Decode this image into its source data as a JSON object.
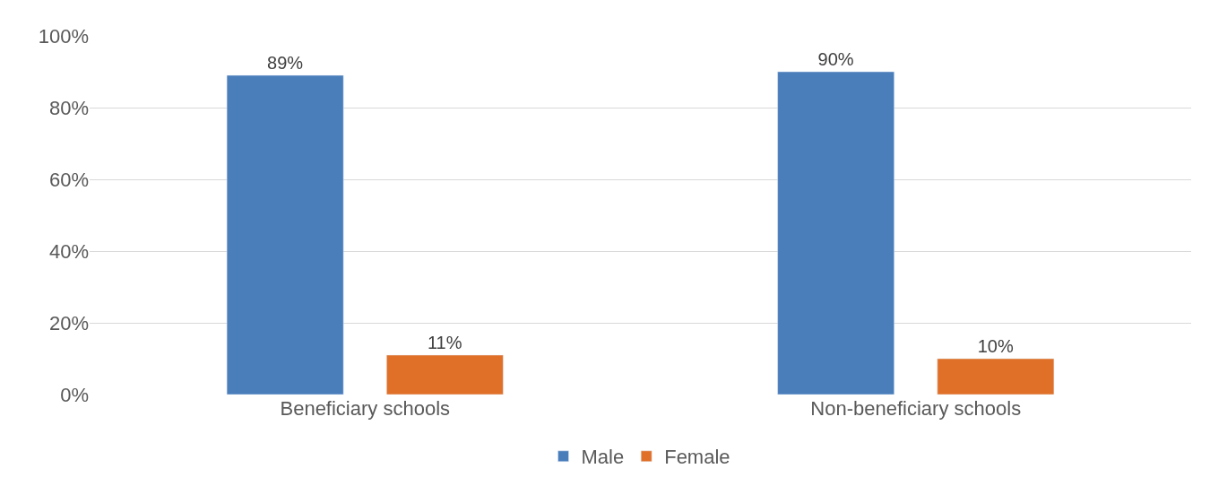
{
  "chart_data": {
    "type": "bar",
    "categories": [
      "Beneficiary schools",
      "Non-beneficiary schools"
    ],
    "series": [
      {
        "name": "Male",
        "color": "#4a7ebb",
        "values": [
          89,
          90
        ]
      },
      {
        "name": "Female",
        "color": "#e07028",
        "values": [
          11,
          10
        ]
      }
    ],
    "value_labels": [
      [
        "89%",
        "90%"
      ],
      [
        "11%",
        "10%"
      ]
    ],
    "ylim": [
      0,
      100
    ],
    "yticks": [
      {
        "value": 0,
        "label": "0%"
      },
      {
        "value": 20,
        "label": "20%"
      },
      {
        "value": 40,
        "label": "40%"
      },
      {
        "value": 60,
        "label": "60%"
      },
      {
        "value": 80,
        "label": "80%"
      },
      {
        "value": 100,
        "label": "100%"
      }
    ],
    "grid": "y",
    "legend": "bottom"
  }
}
